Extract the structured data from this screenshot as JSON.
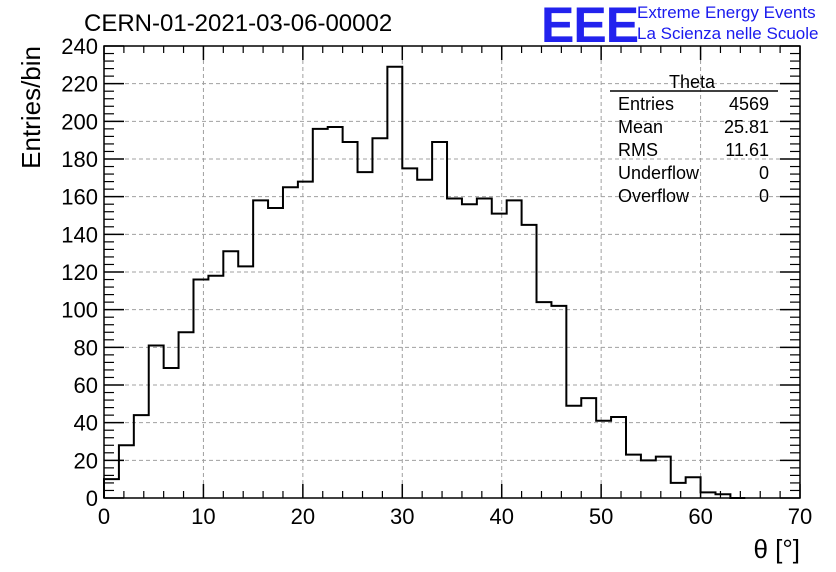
{
  "header": {
    "title": "CERN-01-2021-03-06-00002",
    "logo_text": "EEE",
    "logo_line1": "Extreme Energy Events",
    "logo_line2": "La Scienza nelle Scuole"
  },
  "colors": {
    "logo": "#2222ee",
    "line": "#000000",
    "grid": "#a0a0a0"
  },
  "stats_box": {
    "name": "Theta",
    "rows": [
      {
        "label": "Entries",
        "value": "4569"
      },
      {
        "label": "Mean",
        "value": "25.81"
      },
      {
        "label": "RMS",
        "value": "11.61"
      },
      {
        "label": "Underflow",
        "value": "0"
      },
      {
        "label": "Overflow",
        "value": "0"
      }
    ]
  },
  "chart_data": {
    "type": "bar",
    "histogram": true,
    "xlabel": "θ [°]",
    "ylabel": "Entries/bin",
    "xlim": [
      0,
      70
    ],
    "ylim": [
      0,
      240
    ],
    "x_ticks": [
      0,
      10,
      20,
      30,
      40,
      50,
      60,
      70
    ],
    "y_ticks": [
      0,
      20,
      40,
      60,
      80,
      100,
      120,
      140,
      160,
      180,
      200,
      220,
      240
    ],
    "grid": true,
    "bin_width": 1.5,
    "values": [
      10,
      28,
      44,
      81,
      69,
      88,
      116,
      118,
      131,
      123,
      158,
      154,
      165,
      168,
      196,
      197,
      189,
      173,
      191,
      229,
      175,
      169,
      189,
      159,
      156,
      159,
      151,
      158,
      145,
      104,
      102,
      49,
      53,
      41,
      43,
      23,
      20,
      22,
      8,
      11,
      3,
      2,
      0
    ]
  }
}
